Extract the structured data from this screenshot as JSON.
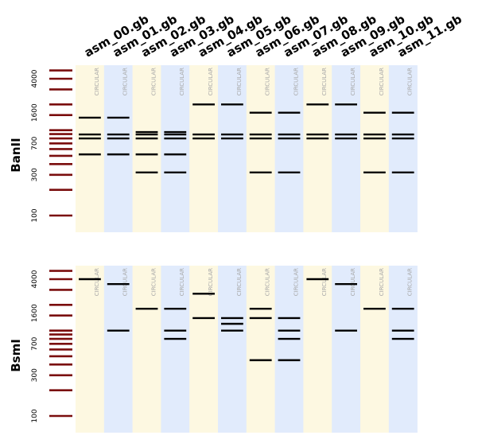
{
  "samples": [
    "asm_00.gb",
    "asm_01.gb",
    "asm_02.gb",
    "asm_03.gb",
    "asm_04.gb",
    "asm_05.gb",
    "asm_06.gb",
    "asm_07.gb",
    "asm_08.gb",
    "asm_09.gb",
    "asm_10.gb",
    "asm_11.gb"
  ],
  "topology_label": "CIRCULAR",
  "colors": {
    "lane_odd": "#fdf8e1",
    "lane_even": "#e1ebfc",
    "ladder": "#7a0d0d",
    "band": "#000000"
  },
  "ladder_bands_bp": [
    100,
    200,
    300,
    400,
    500,
    600,
    700,
    800,
    900,
    1000,
    1500,
    2000,
    3000,
    4000,
    5000
  ],
  "axis_ticks": [
    {
      "value": 100,
      "label": "100"
    },
    {
      "value": 300,
      "label": "300"
    },
    {
      "value": 700,
      "label": "700"
    },
    {
      "value": 1600,
      "label": "1600"
    },
    {
      "value": 4000,
      "label": "4000"
    }
  ],
  "chart_data": {
    "type": "gel",
    "y_scale": "log",
    "ylim_bp": [
      60,
      7000
    ],
    "panels": [
      {
        "enzyme": "BanII",
        "lanes": [
          [
            1400,
            890,
            800,
            520
          ],
          [
            1400,
            890,
            800,
            520
          ],
          [
            950,
            890,
            800,
            520,
            320
          ],
          [
            950,
            890,
            800,
            520,
            320
          ],
          [
            2000,
            890,
            800
          ],
          [
            2000,
            890,
            800
          ],
          [
            1600,
            890,
            800,
            320
          ],
          [
            1600,
            890,
            800,
            320
          ],
          [
            2000,
            890,
            800
          ],
          [
            2000,
            890,
            800
          ],
          [
            1600,
            890,
            800,
            320
          ],
          [
            1600,
            890,
            800,
            320
          ]
        ]
      },
      {
        "enzyme": "BsmI",
        "lanes": [
          [
            4000
          ],
          [
            3500,
            1000
          ],
          [
            1800
          ],
          [
            1800,
            1000,
            800
          ],
          [
            2700,
            1400
          ],
          [
            1400,
            1200,
            1000
          ],
          [
            1800,
            1400,
            450
          ],
          [
            1400,
            1000,
            800,
            450
          ],
          [
            4000
          ],
          [
            3500,
            1000
          ],
          [
            1800
          ],
          [
            1800,
            1000,
            800
          ]
        ]
      }
    ]
  }
}
